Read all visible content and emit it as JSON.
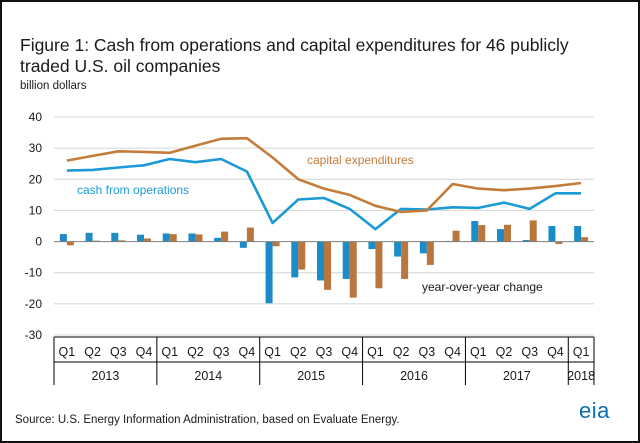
{
  "title": "Figure 1: Cash from operations and capital expenditures for 46 publicly traded U.S. oil companies",
  "unit_label": "billion dollars",
  "source": "Source: U.S. Energy Information Administration, based on Evaluate Energy.",
  "logo_text": "eia",
  "colors": {
    "cash": "#1b9ad6",
    "capex": "#c47c3a",
    "bars_cash": "#1b8cc7",
    "bars_capex": "#b9773d",
    "grid": "#d4d4d4",
    "axis": "#000000",
    "text": "#1a1a1a"
  },
  "chart_data": {
    "type": "line",
    "title": "Figure 1: Cash from operations and capital expenditures for 46 publicly traded U.S. oil companies",
    "ylabel": "billion dollars",
    "ylim": [
      -30,
      40
    ],
    "yticks": [
      40,
      30,
      20,
      10,
      0,
      -10,
      -20,
      -30
    ],
    "grid": "horizontal",
    "categories": [
      "Q1",
      "Q2",
      "Q3",
      "Q4",
      "Q1",
      "Q2",
      "Q3",
      "Q4",
      "Q1",
      "Q2",
      "Q3",
      "Q4",
      "Q1",
      "Q2",
      "Q3",
      "Q4",
      "Q1",
      "Q2",
      "Q3",
      "Q4",
      "Q1"
    ],
    "years": [
      {
        "label": "2013",
        "start": 0,
        "count": 4
      },
      {
        "label": "2014",
        "start": 4,
        "count": 4
      },
      {
        "label": "2015",
        "start": 8,
        "count": 4
      },
      {
        "label": "2016",
        "start": 12,
        "count": 4
      },
      {
        "label": "2017",
        "start": 16,
        "count": 4
      },
      {
        "label": "2018",
        "start": 20,
        "count": 1
      }
    ],
    "series": [
      {
        "name": "cash from operations",
        "kind": "line",
        "color": "#1b9ad6",
        "values": [
          22.8,
          23.0,
          23.8,
          24.5,
          26.5,
          25.5,
          26.5,
          22.5,
          6.0,
          13.5,
          14.0,
          10.5,
          4.0,
          10.5,
          10.3,
          11.0,
          10.8,
          12.5,
          10.5,
          15.5,
          15.5
        ]
      },
      {
        "name": "capital expenditures",
        "kind": "line",
        "color": "#c47c3a",
        "values": [
          26.0,
          27.5,
          29.0,
          28.8,
          28.5,
          30.8,
          33.0,
          33.2,
          27.0,
          20.0,
          17.0,
          15.0,
          11.5,
          9.5,
          10.0,
          18.5,
          17.0,
          16.5,
          17.0,
          17.8,
          18.8
        ]
      },
      {
        "name": "cash from operations year-over-year change",
        "kind": "bar",
        "color": "#1b8cc7",
        "values": [
          2.4,
          2.8,
          2.8,
          2.2,
          2.6,
          2.6,
          1.2,
          -2.0,
          -19.8,
          -11.5,
          -12.5,
          -12.0,
          -2.4,
          -4.8,
          -3.8,
          0.2,
          6.6,
          4.0,
          0.5,
          5.0,
          5.0
        ]
      },
      {
        "name": "capital expenditures year-over-year change",
        "kind": "bar",
        "color": "#b9773d",
        "values": [
          -1.2,
          0.3,
          0.4,
          1.0,
          2.4,
          2.3,
          3.2,
          4.5,
          -1.5,
          -9.0,
          -15.5,
          -18.0,
          -15.0,
          -12.0,
          -7.5,
          3.5,
          5.3,
          5.4,
          6.8,
          -0.8,
          1.4
        ]
      }
    ],
    "annotations": [
      {
        "text": "capital expenditures",
        "series": "capital expenditures"
      },
      {
        "text": "cash from operations",
        "series": "cash from operations"
      },
      {
        "text": "year-over-year change",
        "series": "bars"
      }
    ]
  }
}
